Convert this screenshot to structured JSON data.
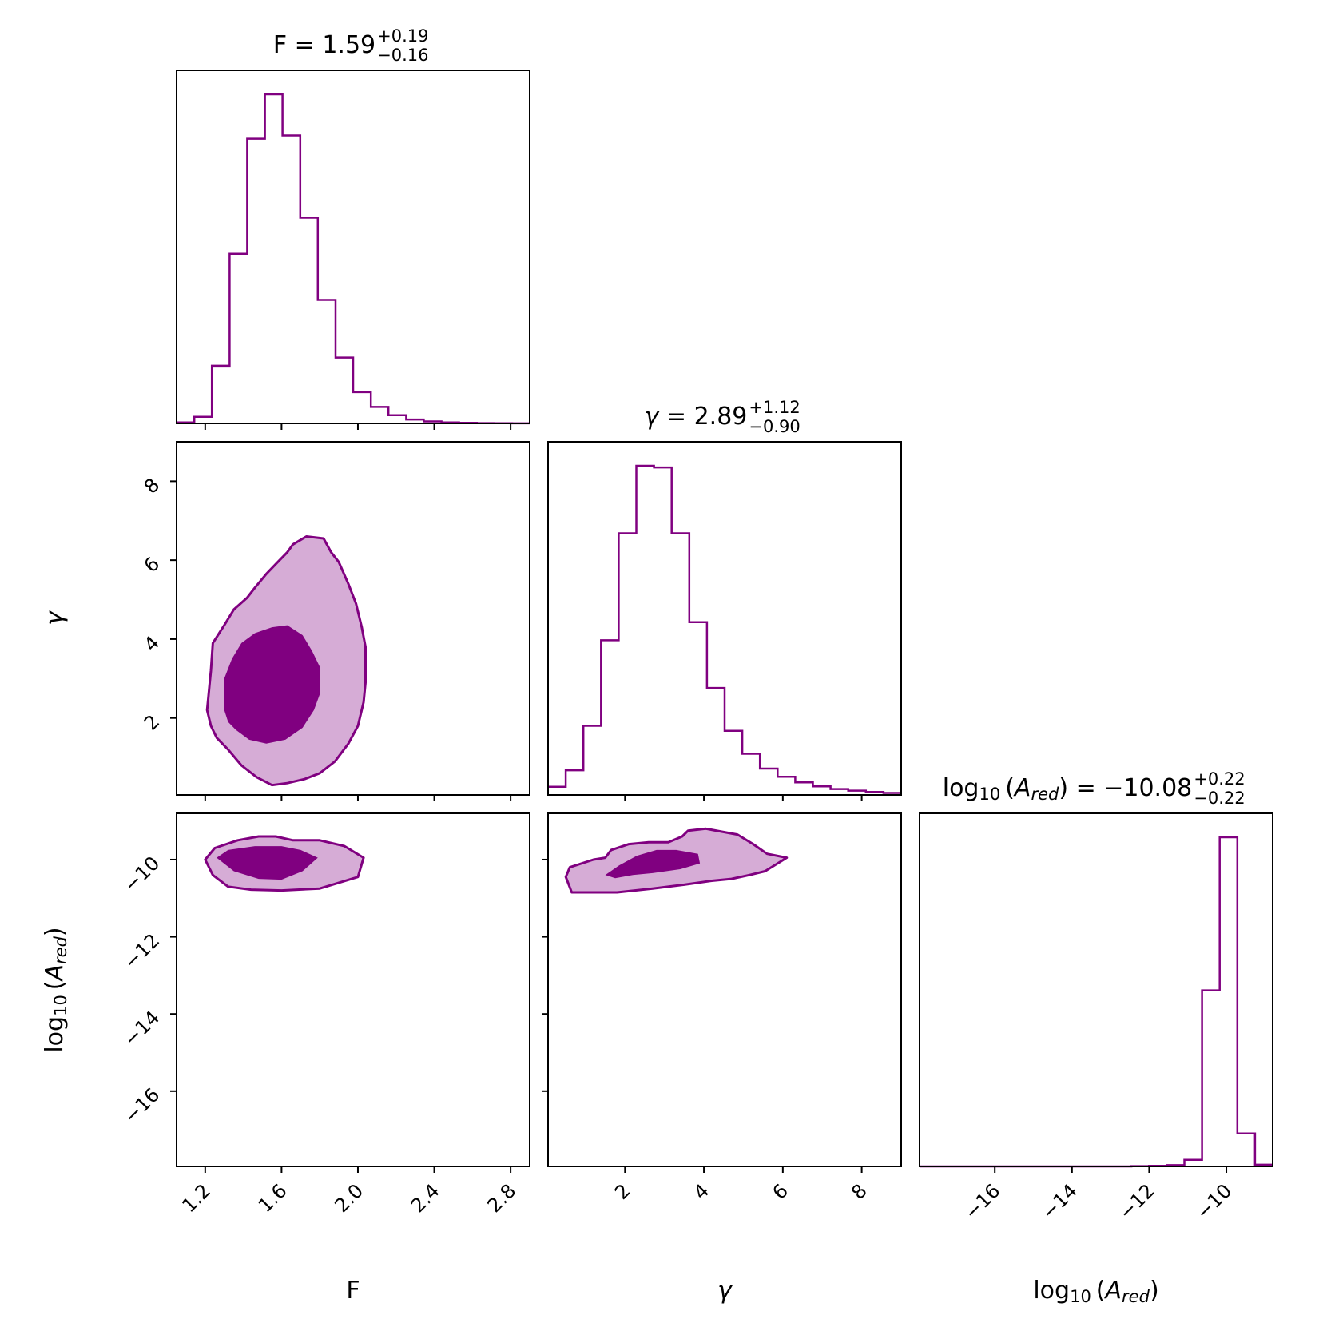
{
  "colors": {
    "main": "#800080",
    "inner_fill": "#800080",
    "outer_fill": "#d6acd6"
  },
  "chart_data": {
    "type": "corner",
    "parameters": [
      {
        "key": "F",
        "label": "F",
        "range": [
          1.05,
          2.9
        ],
        "ticks": [
          1.2,
          1.6,
          2.0,
          2.4,
          2.8
        ],
        "tick_labels": [
          "1.2",
          "1.6",
          "2.0",
          "2.4",
          "2.8"
        ]
      },
      {
        "key": "gamma",
        "label": "γ",
        "range": [
          0.05,
          9.0
        ],
        "ticks": [
          2,
          4,
          6,
          8
        ],
        "tick_labels": [
          "2",
          "4",
          "6",
          "8"
        ]
      },
      {
        "key": "log10_A_red",
        "label": "log10 (Ared)",
        "range": [
          -17.95,
          -8.8
        ],
        "ticks": [
          -16,
          -14,
          -12,
          -10
        ],
        "tick_labels": [
          "−16",
          "−14",
          "−12",
          "−10"
        ]
      }
    ],
    "diagonal_titles": [
      {
        "param": "F",
        "prefix": "F = ",
        "value": "1.59",
        "plus": "+0.19",
        "minus": "−0.16"
      },
      {
        "param": "gamma",
        "prefix": "γ = ",
        "value": "2.89",
        "plus": "+1.12",
        "minus": "−0.90"
      },
      {
        "param": "log10_A_red",
        "prefix": "log10 (Ared) = ",
        "value": "−10.08",
        "plus": "+0.22",
        "minus": "−0.22"
      }
    ],
    "histograms": [
      {
        "param": "F",
        "bin_edges": [
          1.05,
          1.143,
          1.235,
          1.328,
          1.42,
          1.513,
          1.605,
          1.698,
          1.79,
          1.883,
          1.975,
          2.068,
          2.16,
          2.253,
          2.345,
          2.438,
          2.53,
          2.623,
          2.715,
          2.808,
          2.9
        ],
        "counts": [
          0.3,
          2.0,
          17.5,
          51.5,
          86.5,
          100.0,
          87.5,
          62.5,
          37.5,
          20.0,
          9.5,
          5.0,
          2.5,
          1.2,
          0.6,
          0.3,
          0.2,
          0.1,
          0.05,
          0.02
        ]
      },
      {
        "param": "gamma",
        "bin_edges": [
          0.05,
          0.498,
          0.945,
          1.393,
          1.84,
          2.288,
          2.735,
          3.183,
          3.63,
          4.078,
          4.525,
          4.973,
          5.42,
          5.868,
          6.315,
          6.763,
          7.21,
          7.658,
          8.105,
          8.553,
          9.0
        ],
        "counts": [
          2.5,
          7.5,
          21.0,
          47.0,
          79.5,
          100.0,
          99.5,
          79.5,
          52.5,
          32.5,
          19.5,
          12.5,
          8.0,
          5.5,
          3.8,
          2.6,
          1.8,
          1.3,
          0.9,
          0.6
        ]
      },
      {
        "param": "log10_A_red",
        "bin_edges": [
          -17.95,
          -17.493,
          -17.035,
          -16.578,
          -16.12,
          -15.663,
          -15.205,
          -14.748,
          -14.29,
          -13.833,
          -13.375,
          -12.918,
          -12.46,
          -12.003,
          -11.545,
          -11.088,
          -10.63,
          -10.173,
          -9.715,
          -9.258,
          -8.8
        ],
        "counts": [
          0,
          0,
          0,
          0,
          0,
          0,
          0,
          0,
          0,
          0,
          0,
          0,
          0.1,
          0.2,
          0.4,
          2.0,
          53.5,
          100.0,
          10.0,
          0.5
        ]
      }
    ],
    "contours": [
      {
        "x": "F",
        "y": "gamma",
        "levels": [
          {
            "level": "outer",
            "points": [
              [
                1.22,
                2.7
              ],
              [
                1.23,
                3.2
              ],
              [
                1.24,
                3.9
              ],
              [
                1.3,
                4.35
              ],
              [
                1.35,
                4.75
              ],
              [
                1.42,
                5.05
              ],
              [
                1.46,
                5.3
              ],
              [
                1.52,
                5.65
              ],
              [
                1.58,
                5.95
              ],
              [
                1.63,
                6.2
              ],
              [
                1.66,
                6.4
              ],
              [
                1.73,
                6.6
              ],
              [
                1.82,
                6.55
              ],
              [
                1.86,
                6.2
              ],
              [
                1.9,
                5.95
              ],
              [
                1.95,
                5.4
              ],
              [
                1.99,
                4.9
              ],
              [
                2.02,
                4.3
              ],
              [
                2.04,
                3.8
              ],
              [
                2.04,
                2.9
              ],
              [
                2.03,
                2.4
              ],
              [
                2.0,
                1.8
              ],
              [
                1.95,
                1.35
              ],
              [
                1.88,
                0.9
              ],
              [
                1.8,
                0.6
              ],
              [
                1.72,
                0.45
              ],
              [
                1.63,
                0.35
              ],
              [
                1.55,
                0.3
              ],
              [
                1.47,
                0.5
              ],
              [
                1.39,
                0.8
              ],
              [
                1.32,
                1.2
              ],
              [
                1.26,
                1.5
              ],
              [
                1.23,
                1.8
              ],
              [
                1.21,
                2.2
              ]
            ]
          },
          {
            "level": "inner",
            "points": [
              [
                1.3,
                2.2
              ],
              [
                1.3,
                3.0
              ],
              [
                1.34,
                3.5
              ],
              [
                1.39,
                3.9
              ],
              [
                1.46,
                4.15
              ],
              [
                1.55,
                4.3
              ],
              [
                1.63,
                4.35
              ],
              [
                1.71,
                4.1
              ],
              [
                1.76,
                3.7
              ],
              [
                1.8,
                3.3
              ],
              [
                1.8,
                2.6
              ],
              [
                1.77,
                2.2
              ],
              [
                1.71,
                1.75
              ],
              [
                1.62,
                1.45
              ],
              [
                1.52,
                1.35
              ],
              [
                1.43,
                1.45
              ],
              [
                1.36,
                1.7
              ],
              [
                1.32,
                1.9
              ]
            ]
          }
        ]
      },
      {
        "x": "F",
        "y": "log10_A_red",
        "levels": [
          {
            "level": "outer",
            "points": [
              [
                1.2,
                -10.0
              ],
              [
                1.25,
                -9.7
              ],
              [
                1.37,
                -9.5
              ],
              [
                1.48,
                -9.4
              ],
              [
                1.57,
                -9.4
              ],
              [
                1.66,
                -9.5
              ],
              [
                1.8,
                -9.5
              ],
              [
                1.93,
                -9.65
              ],
              [
                2.03,
                -9.95
              ],
              [
                2.0,
                -10.45
              ],
              [
                1.8,
                -10.75
              ],
              [
                1.6,
                -10.8
              ],
              [
                1.44,
                -10.78
              ],
              [
                1.32,
                -10.7
              ],
              [
                1.24,
                -10.4
              ]
            ]
          },
          {
            "level": "inner",
            "points": [
              [
                1.26,
                -9.95
              ],
              [
                1.32,
                -9.75
              ],
              [
                1.46,
                -9.65
              ],
              [
                1.6,
                -9.65
              ],
              [
                1.7,
                -9.75
              ],
              [
                1.79,
                -9.95
              ],
              [
                1.71,
                -10.3
              ],
              [
                1.6,
                -10.52
              ],
              [
                1.48,
                -10.5
              ],
              [
                1.35,
                -10.3
              ]
            ]
          }
        ]
      },
      {
        "x": "gamma",
        "y": "log10_A_red",
        "levels": [
          {
            "level": "outer",
            "points": [
              [
                0.6,
                -10.2
              ],
              [
                1.2,
                -10.0
              ],
              [
                1.5,
                -9.95
              ],
              [
                1.65,
                -9.75
              ],
              [
                2.1,
                -9.6
              ],
              [
                2.6,
                -9.55
              ],
              [
                3.1,
                -9.55
              ],
              [
                3.45,
                -9.4
              ],
              [
                3.6,
                -9.25
              ],
              [
                4.05,
                -9.2
              ],
              [
                4.85,
                -9.35
              ],
              [
                5.25,
                -9.6
              ],
              [
                5.6,
                -9.85
              ],
              [
                6.1,
                -9.95
              ],
              [
                5.55,
                -10.3
              ],
              [
                5.15,
                -10.4
              ],
              [
                4.7,
                -10.5
              ],
              [
                4.2,
                -10.55
              ],
              [
                3.5,
                -10.65
              ],
              [
                2.7,
                -10.75
              ],
              [
                1.8,
                -10.85
              ],
              [
                1.0,
                -10.85
              ],
              [
                0.65,
                -10.85
              ],
              [
                0.5,
                -10.45
              ]
            ]
          },
          {
            "level": "inner",
            "points": [
              [
                1.5,
                -10.4
              ],
              [
                1.85,
                -10.15
              ],
              [
                2.3,
                -9.9
              ],
              [
                2.8,
                -9.75
              ],
              [
                3.3,
                -9.75
              ],
              [
                3.85,
                -9.85
              ],
              [
                3.9,
                -10.1
              ],
              [
                3.4,
                -10.25
              ],
              [
                2.7,
                -10.35
              ],
              [
                2.2,
                -10.4
              ],
              [
                1.75,
                -10.48
              ]
            ]
          }
        ]
      }
    ]
  }
}
